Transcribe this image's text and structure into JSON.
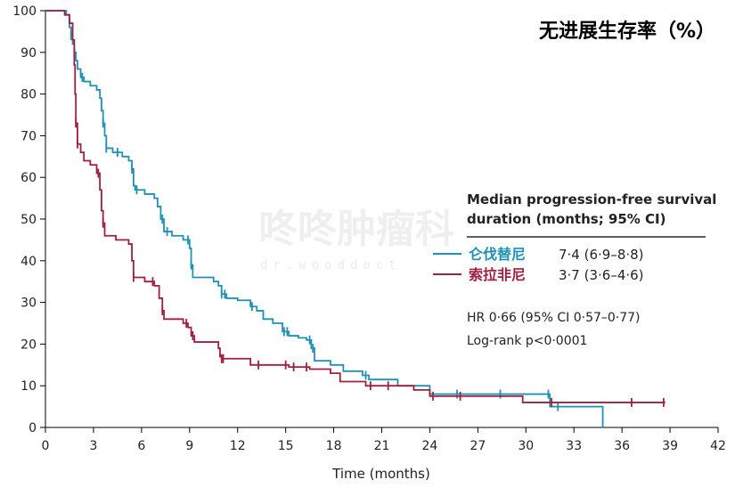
{
  "chart_data": {
    "type": "line",
    "title": "无进展生存率（%）",
    "xlabel": "Time (months)",
    "ylabel": "",
    "xlim": [
      0,
      42
    ],
    "ylim": [
      0,
      100
    ],
    "x_ticks": [
      0,
      3,
      6,
      9,
      12,
      15,
      18,
      21,
      24,
      27,
      30,
      33,
      36,
      39,
      42
    ],
    "y_ticks": [
      0,
      10,
      20,
      30,
      40,
      50,
      60,
      70,
      80,
      90,
      100
    ],
    "grid": false,
    "legend_position": "right",
    "annotation_title": "Median progression-free survival duration (months; 95% CI)",
    "stats": [
      "HR 0·66 (95% CI 0·57–0·77)",
      "Log-rank p<0·0001"
    ],
    "series": [
      {
        "name": "仑伐替尼",
        "median_label": "7·4 (6·9–8·8)",
        "color": "#1f91b5",
        "steps": [
          [
            0,
            100
          ],
          [
            1.3,
            99
          ],
          [
            1.5,
            96
          ],
          [
            1.6,
            94
          ],
          [
            1.7,
            92
          ],
          [
            1.8,
            90
          ],
          [
            1.9,
            88
          ],
          [
            2.0,
            86
          ],
          [
            2.2,
            84
          ],
          [
            2.4,
            83
          ],
          [
            2.8,
            82
          ],
          [
            3.2,
            81
          ],
          [
            3.4,
            79
          ],
          [
            3.5,
            76
          ],
          [
            3.6,
            73
          ],
          [
            3.7,
            70
          ],
          [
            3.8,
            67
          ],
          [
            4.2,
            66
          ],
          [
            4.8,
            65
          ],
          [
            5.2,
            64
          ],
          [
            5.4,
            62
          ],
          [
            5.5,
            58
          ],
          [
            5.6,
            57
          ],
          [
            6.2,
            56
          ],
          [
            6.8,
            55
          ],
          [
            7.0,
            53
          ],
          [
            7.2,
            50
          ],
          [
            7.4,
            47
          ],
          [
            7.9,
            46
          ],
          [
            8.6,
            45
          ],
          [
            9.0,
            43
          ],
          [
            9.1,
            39
          ],
          [
            9.2,
            36
          ],
          [
            10.5,
            35
          ],
          [
            10.8,
            34
          ],
          [
            11.0,
            32
          ],
          [
            11.3,
            31
          ],
          [
            12.0,
            30.5
          ],
          [
            12.8,
            29
          ],
          [
            13.2,
            28
          ],
          [
            13.6,
            26
          ],
          [
            14.2,
            25
          ],
          [
            14.8,
            23
          ],
          [
            15.2,
            22
          ],
          [
            15.8,
            21.5
          ],
          [
            16.3,
            21
          ],
          [
            16.6,
            19
          ],
          [
            16.8,
            16
          ],
          [
            17.8,
            15
          ],
          [
            18.6,
            13.5
          ],
          [
            19.8,
            12.5
          ],
          [
            20.2,
            11.5
          ],
          [
            22.0,
            10
          ],
          [
            24.0,
            8
          ],
          [
            30.0,
            8
          ],
          [
            31.5,
            5
          ],
          [
            34.8,
            5
          ],
          [
            34.8,
            0
          ]
        ],
        "censor_x": [
          1.6,
          1.8,
          2.3,
          3.6,
          3.8,
          4.5,
          5.4,
          5.7,
          7.3,
          7.6,
          8.9,
          9.1,
          11.0,
          11.2,
          12.9,
          14.9,
          15.1,
          16.5,
          16.7,
          20.0,
          25.7,
          28.4,
          31.4,
          32.0
        ]
      },
      {
        "name": "索拉非尼",
        "median_label": "3·7 (3·6–4·6)",
        "color": "#a0203f",
        "steps": [
          [
            0,
            100
          ],
          [
            1.2,
            99
          ],
          [
            1.5,
            97
          ],
          [
            1.7,
            93
          ],
          [
            1.8,
            87
          ],
          [
            1.85,
            80
          ],
          [
            1.9,
            73
          ],
          [
            2.0,
            68
          ],
          [
            2.2,
            66
          ],
          [
            2.4,
            64
          ],
          [
            2.8,
            63
          ],
          [
            3.2,
            61
          ],
          [
            3.4,
            57
          ],
          [
            3.5,
            52
          ],
          [
            3.6,
            49
          ],
          [
            3.7,
            46
          ],
          [
            4.4,
            45
          ],
          [
            5.2,
            44
          ],
          [
            5.4,
            40
          ],
          [
            5.5,
            36
          ],
          [
            6.2,
            35
          ],
          [
            6.8,
            34
          ],
          [
            7.1,
            31
          ],
          [
            7.3,
            28
          ],
          [
            7.4,
            26
          ],
          [
            8.6,
            25
          ],
          [
            8.9,
            24
          ],
          [
            9.1,
            22
          ],
          [
            9.3,
            20.5
          ],
          [
            10.8,
            19
          ],
          [
            10.9,
            17
          ],
          [
            11.0,
            16.5
          ],
          [
            12.8,
            15
          ],
          [
            15.2,
            14.5
          ],
          [
            16.5,
            14
          ],
          [
            17.8,
            13
          ],
          [
            18.4,
            11
          ],
          [
            20.0,
            10
          ],
          [
            23.0,
            9
          ],
          [
            24.0,
            7.5
          ],
          [
            29.8,
            6
          ],
          [
            38.7,
            6
          ]
        ],
        "censor_x": [
          1.9,
          2.0,
          3.3,
          3.6,
          5.5,
          6.7,
          7.3,
          8.8,
          9.2,
          11.0,
          11.1,
          13.3,
          15.0,
          15.5,
          16.3,
          20.3,
          21.4,
          24.2,
          25.9,
          31.6,
          36.6,
          38.6
        ]
      }
    ]
  }
}
